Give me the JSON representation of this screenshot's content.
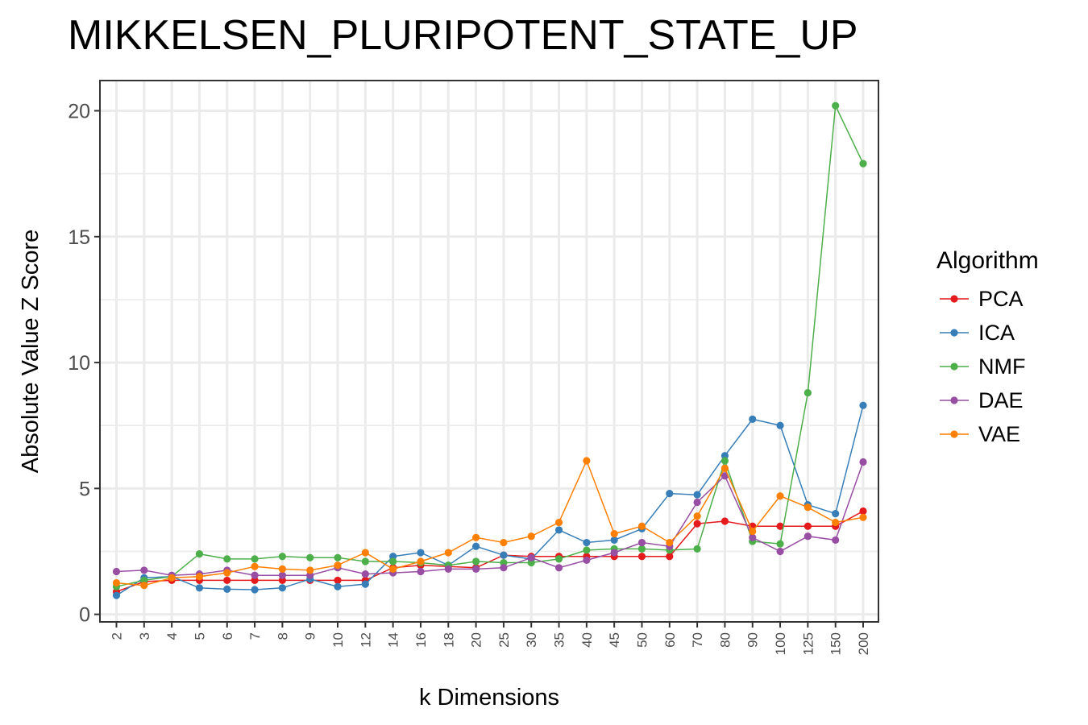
{
  "chart_data": {
    "type": "line",
    "title": "MIKKELSEN_PLURIPOTENT_STATE_UP",
    "xlabel": "k Dimensions",
    "ylabel": "Absolute Value Z Score",
    "categories": [
      "2",
      "3",
      "4",
      "5",
      "6",
      "7",
      "8",
      "9",
      "10",
      "12",
      "14",
      "16",
      "18",
      "20",
      "25",
      "30",
      "35",
      "40",
      "45",
      "50",
      "60",
      "70",
      "80",
      "90",
      "100",
      "125",
      "150",
      "200"
    ],
    "ylim": [
      -0.3,
      21.2
    ],
    "yticks": [
      0,
      5,
      10,
      15,
      20
    ],
    "grid": true,
    "legend_title": "Algorithm",
    "legend_position": "right",
    "series": [
      {
        "name": "PCA",
        "color": "#e41a1c",
        "values": [
          0.9,
          1.3,
          1.35,
          1.35,
          1.35,
          1.35,
          1.35,
          1.35,
          1.35,
          1.35,
          1.85,
          1.95,
          1.9,
          1.85,
          2.35,
          2.3,
          2.3,
          2.3,
          2.3,
          2.3,
          2.3,
          3.6,
          3.7,
          3.5,
          3.5,
          3.5,
          3.5,
          4.1
        ]
      },
      {
        "name": "ICA",
        "color": "#377eb8",
        "values": [
          0.75,
          1.45,
          1.5,
          1.05,
          1.0,
          0.98,
          1.05,
          1.4,
          1.1,
          1.2,
          2.3,
          2.45,
          1.95,
          2.7,
          2.35,
          2.2,
          3.35,
          2.85,
          2.95,
          3.4,
          4.8,
          4.75,
          6.3,
          7.75,
          7.5,
          4.35,
          4.0,
          8.3
        ]
      },
      {
        "name": "NMF",
        "color": "#4daf4a",
        "values": [
          1.1,
          1.35,
          1.5,
          2.4,
          2.2,
          2.2,
          2.3,
          2.25,
          2.25,
          2.1,
          2.1,
          2.05,
          1.95,
          2.1,
          2.05,
          2.05,
          2.2,
          2.55,
          2.6,
          2.6,
          2.55,
          2.6,
          6.1,
          2.9,
          2.8,
          8.8,
          20.2,
          17.9
        ]
      },
      {
        "name": "DAE",
        "color": "#984ea3",
        "values": [
          1.7,
          1.75,
          1.55,
          1.6,
          1.75,
          1.55,
          1.55,
          1.55,
          1.85,
          1.6,
          1.65,
          1.7,
          1.8,
          1.8,
          1.85,
          2.25,
          1.85,
          2.15,
          2.45,
          2.85,
          2.7,
          4.45,
          5.5,
          3.05,
          2.5,
          3.1,
          2.95,
          6.05
        ]
      },
      {
        "name": "VAE",
        "color": "#ff7f00",
        "values": [
          1.25,
          1.15,
          1.45,
          1.5,
          1.65,
          1.9,
          1.8,
          1.75,
          1.95,
          2.45,
          1.8,
          2.1,
          2.45,
          3.05,
          2.85,
          3.1,
          3.65,
          6.1,
          3.2,
          3.5,
          2.85,
          3.9,
          5.8,
          3.3,
          4.7,
          4.25,
          3.65,
          3.85
        ]
      }
    ]
  }
}
